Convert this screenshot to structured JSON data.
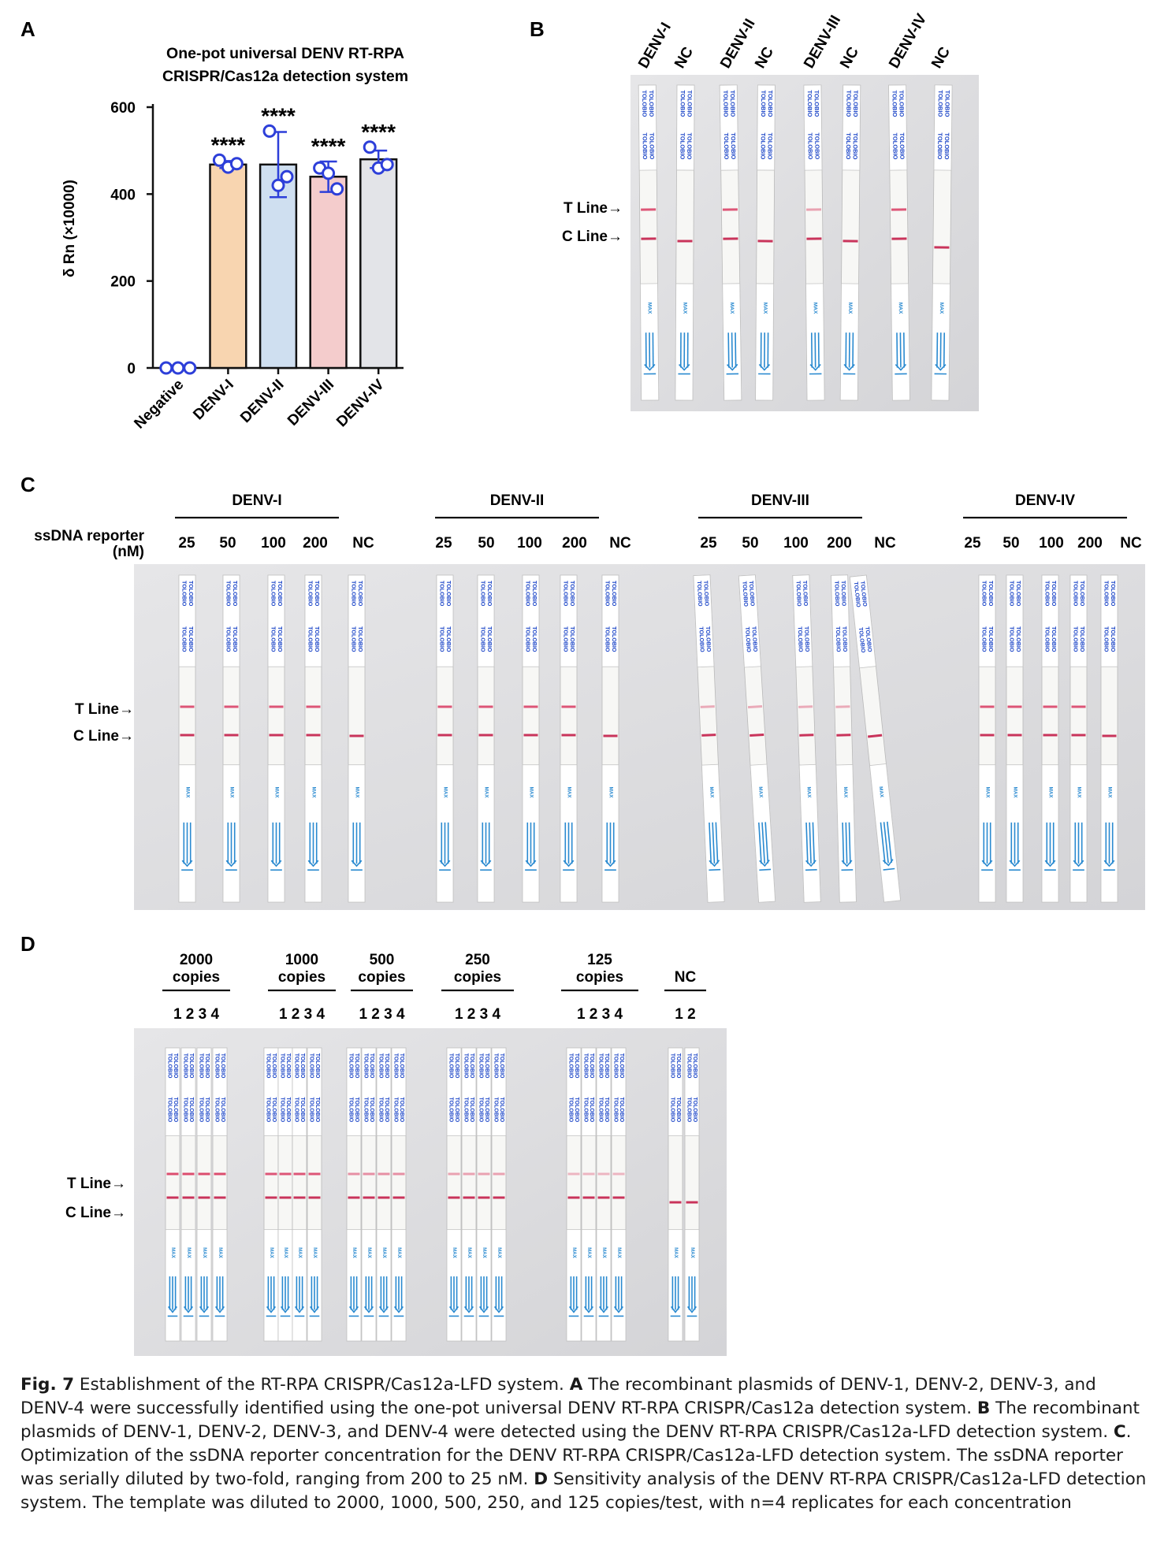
{
  "panels": {
    "A": {
      "letter": "A"
    },
    "B": {
      "letter": "B",
      "t_line": "T Line→",
      "c_line": "C Line→",
      "lanes": [
        "DENV-I",
        "NC",
        "DENV-II",
        "NC",
        "DENV-III",
        "NC",
        "DENV-IV",
        "NC"
      ]
    },
    "C": {
      "letter": "C",
      "t_line": "T Line→",
      "c_line": "C Line→",
      "reporter_label_1": "ssDNA reporter",
      "reporter_label_2": "(nM)",
      "groups": [
        {
          "name": "DENV-I",
          "lanes": [
            "25",
            "50",
            "100",
            "200",
            "NC"
          ]
        },
        {
          "name": "DENV-II",
          "lanes": [
            "25",
            "50",
            "100",
            "200",
            "NC"
          ]
        },
        {
          "name": "DENV-III",
          "lanes": [
            "25",
            "50",
            "100",
            "200",
            "NC"
          ]
        },
        {
          "name": "DENV-IV",
          "lanes": [
            "25",
            "50",
            "100",
            "200",
            "NC"
          ]
        }
      ]
    },
    "D": {
      "letter": "D",
      "t_line": "T Line→",
      "c_line": "C Line→",
      "groups": [
        {
          "line1": "2000",
          "line2": "copies",
          "reps": "1 2 3 4"
        },
        {
          "line1": "1000",
          "line2": "copies",
          "reps": "1 2 3 4"
        },
        {
          "line1": "500",
          "line2": "copies",
          "reps": "1 2 3 4"
        },
        {
          "line1": "250",
          "line2": "copies",
          "reps": "1 2 3 4"
        },
        {
          "line1": "125",
          "line2": "copies",
          "reps": "1 2 3 4"
        },
        {
          "line1": "NC",
          "line2": "",
          "reps": "1 2"
        }
      ]
    }
  },
  "strip_text": {
    "brand": "TOLOBIO",
    "max": "MAX"
  },
  "chart_data": {
    "type": "bar",
    "title": "One-pot universal DENV RT-RPA CRISPR/Cas12a detection system",
    "title_line1": "One-pot universal DENV RT-RPA",
    "title_line2": "CRISPR/Cas12a detection system",
    "ylabel": "δ Rn (×10000)",
    "xlabel": "",
    "ylim": [
      0,
      600
    ],
    "yticks": [
      "0",
      "200",
      "400",
      "600"
    ],
    "categories": [
      "Negative",
      "DENV-I",
      "DENV-II",
      "DENV-III",
      "DENV-IV"
    ],
    "values": [
      0,
      468,
      468,
      440,
      480
    ],
    "errors": [
      0,
      8,
      75,
      35,
      20
    ],
    "points": [
      [
        0,
        0,
        0
      ],
      [
        478,
        462,
        470
      ],
      [
        545,
        420,
        440
      ],
      [
        460,
        448,
        412
      ],
      [
        508,
        460,
        468
      ]
    ],
    "significance": [
      "",
      "****",
      "****",
      "****",
      "****"
    ],
    "colors": [
      "#ffffff",
      "#f8d5b0",
      "#cfdff0",
      "#f4cccc",
      "#e3e4e8"
    ],
    "marker_color": "#2d3fd9"
  },
  "caption": {
    "fig_label": "Fig. 7",
    "intro": " Establishment of the RT-RPA CRISPR/Cas12a-LFD system. ",
    "a_label": "A",
    "a_text": " The recombinant plasmids of DENV-1, DENV-2, DENV-3, and DENV-4 were successfully identified using the one-pot universal DENV RT-RPA CRISPR/Cas12a detection system. ",
    "b_label": "B",
    "b_text": " The recombinant plasmids of DENV-1, DENV-2, DENV-3, and DENV-4 were detected using the DENV RT-RPA CRISPR/Cas12a-LFD detection system. ",
    "c_label": "C",
    "c_text": ". Optimization of the ssDNA reporter concentration for the DENV RT-RPA CRISPR/Cas12a-LFD detection system. The ssDNA reporter was serially diluted by two-fold, ranging from 200 to 25 nM. ",
    "d_label": "D",
    "d_text": " Sensitivity analysis of the DENV RT-RPA CRISPR/Cas12a-LFD detection system. The template was diluted to 2000, 1000, 500, 250, and 125 copies/test, with n=4 replicates for each concentration"
  }
}
